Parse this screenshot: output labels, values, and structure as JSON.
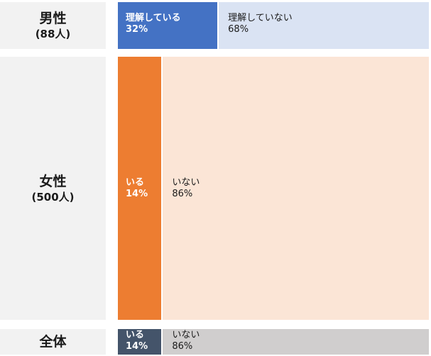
{
  "chart_data": {
    "type": "bar",
    "stacked": true,
    "orientation": "horizontal",
    "rows": [
      {
        "name": "男性",
        "n_label": "(88人)",
        "segments": [
          {
            "label": "理解している",
            "value": 32,
            "value_label": "32%",
            "color": "#4472c4"
          },
          {
            "label": "理解していない",
            "value": 68,
            "value_label": "68%",
            "color": "#dae3f3"
          }
        ]
      },
      {
        "name": "女性",
        "n_label": "(500人)",
        "segments": [
          {
            "label": "いる",
            "value": 14,
            "value_label": "14%",
            "color": "#ed7d31"
          },
          {
            "label": "いない",
            "value": 86,
            "value_label": "86%",
            "color": "#fbe5d6"
          }
        ]
      },
      {
        "name": "全体",
        "n_label": "",
        "segments": [
          {
            "label": "いる",
            "value": 14,
            "value_label": "14%",
            "color": "#44546a"
          },
          {
            "label": "いない",
            "value": 86,
            "value_label": "86%",
            "color": "#d0cece"
          }
        ]
      }
    ]
  }
}
